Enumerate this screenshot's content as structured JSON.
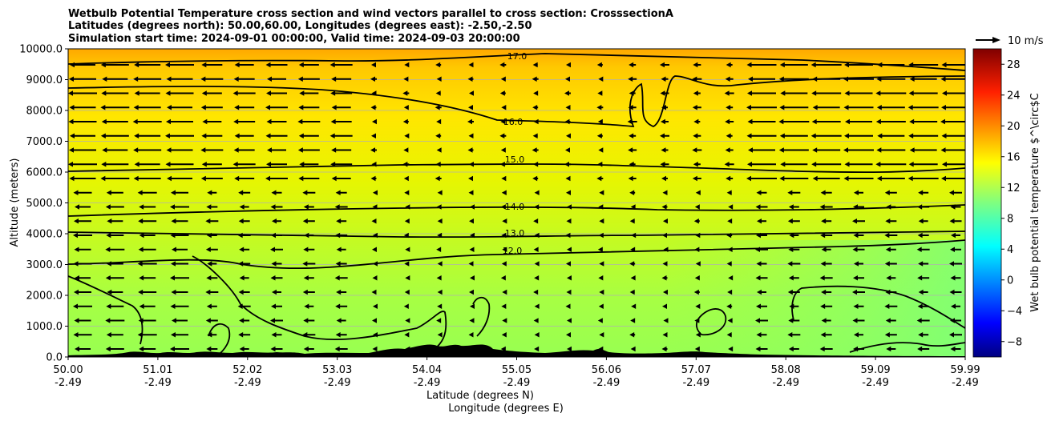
{
  "chart_data": {
    "type": "heatmap",
    "title_lines": [
      "Wetbulb Potential Temperature cross section and wind vectors parallel to cross section: CrosssectionA",
      "Latitudes (degrees north): 50.00,60.00, Longitudes (degrees east): -2.50,-2.50",
      "Simulation start time: 2024-09-01 00:00:00, Valid time: 2024-09-03 20:00:00"
    ],
    "ylabel": "Altitude (meters)",
    "xlabel_lat": "Latitude (degrees N)",
    "xlabel_lon": "Longitude (degrees E)",
    "ylim": [
      0,
      10000
    ],
    "y_ticks": [
      "0.0",
      "1000.0",
      "2000.0",
      "3000.0",
      "4000.0",
      "5000.0",
      "6000.0",
      "7000.0",
      "8000.0",
      "9000.0",
      "10000.0"
    ],
    "x_ticks": [
      {
        "lat": "50.00",
        "lon": "-2.49"
      },
      {
        "lat": "51.01",
        "lon": "-2.49"
      },
      {
        "lat": "52.02",
        "lon": "-2.49"
      },
      {
        "lat": "53.03",
        "lon": "-2.49"
      },
      {
        "lat": "54.04",
        "lon": "-2.49"
      },
      {
        "lat": "55.05",
        "lon": "-2.49"
      },
      {
        "lat": "56.06",
        "lon": "-2.49"
      },
      {
        "lat": "57.07",
        "lon": "-2.49"
      },
      {
        "lat": "58.08",
        "lon": "-2.49"
      },
      {
        "lat": "59.09",
        "lon": "-2.49"
      },
      {
        "lat": "59.99",
        "lon": "-2.49"
      }
    ],
    "grid": "horizontal",
    "colorbar": {
      "label": "Wet bulb potential temperature $^\\circ$C",
      "range": [
        -10,
        30
      ],
      "ticks": [
        "−8",
        "−4",
        "0",
        "4",
        "8",
        "12",
        "16",
        "20",
        "24",
        "28"
      ],
      "colormap": "jet"
    },
    "quiver_key": "10 m/s",
    "contours": [
      {
        "label": "12.0",
        "altitude": 3300
      },
      {
        "label": "13.0",
        "altitude": 4000
      },
      {
        "label": "14.0",
        "altitude": 4850
      },
      {
        "label": "15.0",
        "altitude": 6450
      },
      {
        "label": "16.0",
        "altitude": 7750
      },
      {
        "label": "17.0",
        "altitude": 9650
      }
    ]
  }
}
